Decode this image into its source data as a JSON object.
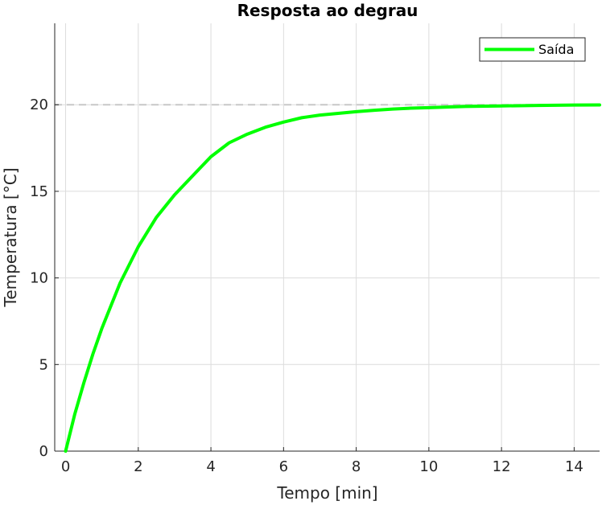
{
  "chart_data": {
    "type": "line",
    "title": "Resposta ao degrau",
    "xlabel": "Tempo [min]",
    "ylabel": "Temperatura [°C]",
    "xlim": [
      -0.3,
      14.7
    ],
    "ylim": [
      0,
      24.7
    ],
    "xticks": [
      0,
      2,
      4,
      6,
      8,
      10,
      12,
      14
    ],
    "yticks": [
      0,
      5,
      10,
      15,
      20
    ],
    "grid": true,
    "legend_position": "top-right",
    "reference_line": {
      "y": 20,
      "style": "dashed",
      "color": "#c8c8c8"
    },
    "series": [
      {
        "name": "Saída",
        "color": "#00ff00",
        "x": [
          0,
          0.25,
          0.5,
          0.75,
          1,
          1.5,
          2,
          2.5,
          3,
          3.5,
          4,
          4.5,
          5,
          5.5,
          6,
          6.5,
          7,
          7.5,
          8,
          8.5,
          9,
          9.5,
          10,
          11,
          12,
          13,
          14,
          14.7
        ],
        "y": [
          0,
          2.12,
          3.93,
          5.6,
          7.1,
          9.71,
          11.8,
          13.5,
          14.8,
          15.9,
          17.0,
          17.8,
          18.3,
          18.7,
          19.0,
          19.25,
          19.4,
          19.5,
          19.6,
          19.68,
          19.75,
          19.8,
          19.83,
          19.9,
          19.93,
          19.96,
          19.98,
          19.99
        ]
      }
    ]
  }
}
